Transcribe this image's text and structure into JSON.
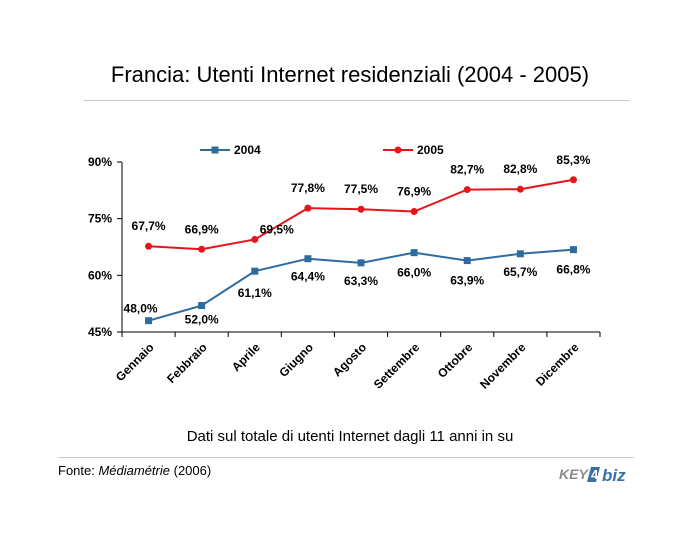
{
  "page": {
    "title": "Francia: Utenti Internet residenziali (2004 - 2005)",
    "subtitle": "Dati sul totale di utenti Internet dagli 11 anni in su",
    "source_prefix": "Fonte: ",
    "source_name": "Médiamétrie",
    "source_year": " (2006)",
    "logo_text_left": "KEY",
    "logo_text_right": "biz"
  },
  "colors": {
    "series_2004": "#2e6b9e",
    "series_2005": "#e8141c",
    "logo_blue": "#3a6fa6",
    "logo_gray": "#8a8a8a"
  },
  "chart_data": {
    "type": "line",
    "categories": [
      "Gennaio",
      "Febbraio",
      "Aprile",
      "Giugno",
      "Agosto",
      "Settembre",
      "Ottobre",
      "Novembre",
      "Dicembre"
    ],
    "series": [
      {
        "name": "2004",
        "values": [
          48.0,
          52.0,
          61.1,
          64.4,
          63.3,
          66.0,
          63.9,
          65.7,
          66.8
        ],
        "labels": [
          "48,0%",
          "52,0%",
          "61,1%",
          "64,4%",
          "63,3%",
          "66,0%",
          "63,9%",
          "65,7%",
          "66,8%"
        ]
      },
      {
        "name": "2005",
        "values": [
          67.7,
          66.9,
          69.5,
          77.8,
          77.5,
          76.9,
          82.7,
          82.8,
          85.3
        ],
        "labels": [
          "67,7%",
          "66,9%",
          "69,5%",
          "77,8%",
          "77,5%",
          "76,9%",
          "82,7%",
          "82,8%",
          "85,3%"
        ]
      }
    ],
    "ylim": [
      45,
      90
    ],
    "yticks": [
      45,
      60,
      75,
      90
    ],
    "ytick_labels": [
      "45%",
      "60%",
      "75%",
      "90%"
    ],
    "grid": false,
    "legend": "top"
  }
}
